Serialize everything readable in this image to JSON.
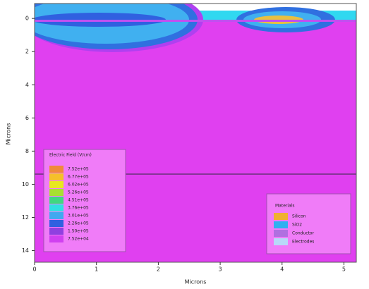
{
  "chart_data": {
    "type": "contour",
    "xlabel": "Microns",
    "ylabel": "Microns",
    "xlim": [
      0,
      5.2
    ],
    "ylim": [
      -0.9,
      14.7
    ],
    "xticks": [
      0,
      1,
      2,
      3,
      4,
      5
    ],
    "yticks": [
      0,
      2,
      4,
      6,
      8,
      10,
      12,
      14
    ],
    "y_inverted": true,
    "field_legend": {
      "title": "Electric Field (V/cm)",
      "levels": [
        {
          "value": 752000,
          "label": "7.52e+05"
        },
        {
          "value": 677000,
          "label": "6.77e+05"
        },
        {
          "value": 602000,
          "label": "6.02e+05"
        },
        {
          "value": 526000,
          "label": "5.26e+05"
        },
        {
          "value": 451000,
          "label": "4.51e+05"
        },
        {
          "value": 376000,
          "label": "3.76e+05"
        },
        {
          "value": 301000,
          "label": "3.01e+05"
        },
        {
          "value": 226000,
          "label": "2.26e+05"
        },
        {
          "value": 150000,
          "label": "1.50e+05"
        },
        {
          "value": 75200,
          "label": "7.52e+04"
        }
      ],
      "colors": [
        "#f08a3a",
        "#f5c02a",
        "#e8e820",
        "#a8e030",
        "#40d880",
        "#30e0e0",
        "#40a8f0",
        "#3060e0",
        "#9040e0",
        "#d040f0"
      ]
    },
    "materials_legend": {
      "title": "Materials",
      "items": [
        "Silicon",
        "SiO2",
        "Conductor",
        "Electrodes"
      ],
      "colors": [
        "#f0b030",
        "#30b0f0",
        "#b070e0",
        "#b8d8f8"
      ]
    }
  }
}
